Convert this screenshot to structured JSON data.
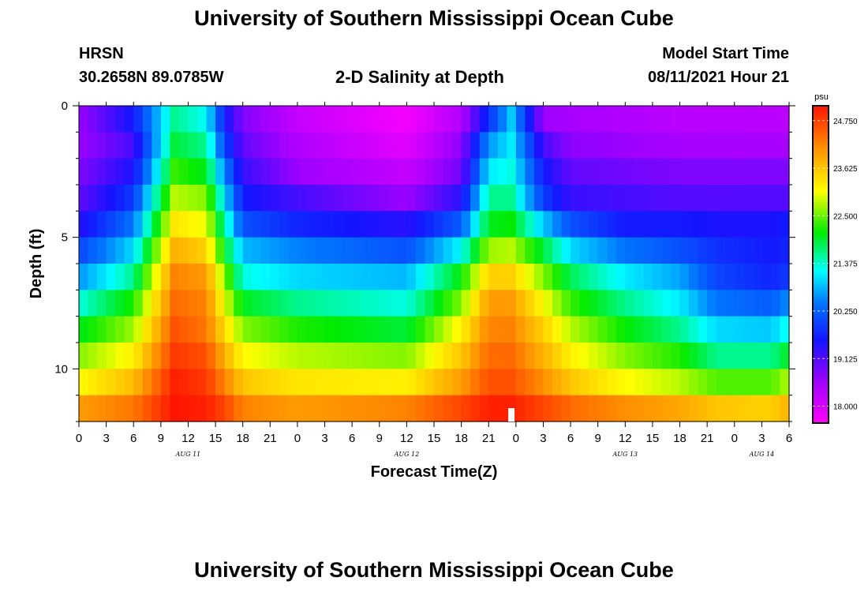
{
  "page": {
    "title_top": "University of Southern Mississippi Ocean Cube",
    "title_bottom": "University of Southern Mississippi Ocean Cube",
    "station": "HRSN",
    "location": "30.2658N  89.0785W",
    "plot_title": "2-D Salinity at Depth",
    "model_start_label": "Model Start Time",
    "model_start_value": "08/11/2021 Hour 21"
  },
  "chart_data": {
    "type": "heatmap",
    "title": "2-D Salinity at Depth",
    "xlabel": "Forecast Time(Z)",
    "ylabel": "Depth (ft)",
    "x_tick_labels": [
      "0",
      "3",
      "6",
      "9",
      "12",
      "15",
      "18",
      "21",
      "0",
      "3",
      "6",
      "9",
      "12",
      "15",
      "18",
      "21",
      "0",
      "3",
      "6",
      "9",
      "12",
      "15",
      "18",
      "21",
      "0",
      "3",
      "6"
    ],
    "x_range_hours": [
      0,
      78
    ],
    "day_labels": [
      {
        "label": "AUG 11",
        "hour": 12
      },
      {
        "label": "AUG 12",
        "hour": 36
      },
      {
        "label": "AUG 13",
        "hour": 60
      },
      {
        "label": "AUG 14",
        "hour": 75
      }
    ],
    "y_tick_labels": [
      "0",
      "5",
      "10"
    ],
    "y_range_ft": [
      0,
      12
    ],
    "colorbar": {
      "unit": "psu",
      "tick_labels": [
        "24.750",
        "23.625",
        "22.500",
        "21.375",
        "20.250",
        "19.125",
        "18.000"
      ],
      "range": [
        17.6,
        25.1
      ]
    },
    "model_start_marker_hour": 47.5,
    "depth_levels_ft": [
      0.5,
      1.5,
      2.5,
      3.5,
      4.5,
      5.5,
      6.5,
      7.5,
      8.5,
      9.5,
      10.5,
      11.5
    ],
    "hours": [
      0,
      6,
      10.5,
      14,
      16,
      18,
      24,
      36,
      42,
      45,
      47.5,
      51,
      54,
      60,
      66,
      70,
      76,
      78
    ],
    "values": [
      [
        18.6,
        19.6,
        21.6,
        21.2,
        19.6,
        18.8,
        18.2,
        17.7,
        18.4,
        19.8,
        20.9,
        18.6,
        18.5,
        18.4,
        18.3,
        18.3,
        18.3,
        18.3
      ],
      [
        18.6,
        19.2,
        21.9,
        21.6,
        20.0,
        19.0,
        18.4,
        17.9,
        18.7,
        20.6,
        21.1,
        19.2,
        18.7,
        18.6,
        18.5,
        18.5,
        18.5,
        18.5
      ],
      [
        18.8,
        19.5,
        22.3,
        22.0,
        20.5,
        19.3,
        18.6,
        18.2,
        18.9,
        21.1,
        21.3,
        19.6,
        19.0,
        18.9,
        18.8,
        18.8,
        18.8,
        18.8
      ],
      [
        19.0,
        19.9,
        22.8,
        22.6,
        21.0,
        19.6,
        19.2,
        18.6,
        19.4,
        21.6,
        21.6,
        19.9,
        19.3,
        19.2,
        19.1,
        19.1,
        19.1,
        19.1
      ],
      [
        19.4,
        20.4,
        23.3,
        23.0,
        21.5,
        20.1,
        19.7,
        19.4,
        20.2,
        22.0,
        22.1,
        20.9,
        20.1,
        19.6,
        19.6,
        19.5,
        19.5,
        19.6
      ],
      [
        20.0,
        21.0,
        23.8,
        23.5,
        22.0,
        20.8,
        20.5,
        20.1,
        21.2,
        22.7,
        22.8,
        21.9,
        21.0,
        20.4,
        20.1,
        19.8,
        19.6,
        19.7
      ],
      [
        20.6,
        21.6,
        24.2,
        24.0,
        22.6,
        21.3,
        21.0,
        20.8,
        22.1,
        23.5,
        23.5,
        22.6,
        21.8,
        21.1,
        20.7,
        20.0,
        19.7,
        19.9
      ],
      [
        21.3,
        22.2,
        24.4,
        24.2,
        23.0,
        22.0,
        21.6,
        21.3,
        22.6,
        24.0,
        24.0,
        23.1,
        22.3,
        21.6,
        21.1,
        20.4,
        20.2,
        20.6
      ],
      [
        22.0,
        22.7,
        24.6,
        24.3,
        23.4,
        22.6,
        22.2,
        21.9,
        23.2,
        24.2,
        24.2,
        23.5,
        22.8,
        22.1,
        21.6,
        21.0,
        20.9,
        21.3
      ],
      [
        22.6,
        23.2,
        24.8,
        24.6,
        23.8,
        23.1,
        22.8,
        22.6,
        23.6,
        24.4,
        24.4,
        23.8,
        23.2,
        22.6,
        22.2,
        21.6,
        21.6,
        22.0
      ],
      [
        23.1,
        23.7,
        25.0,
        24.8,
        24.2,
        23.6,
        23.3,
        23.2,
        24.0,
        24.6,
        24.6,
        24.1,
        23.6,
        23.1,
        22.8,
        22.4,
        22.4,
        22.8
      ],
      [
        24.0,
        24.3,
        25.1,
        25.0,
        24.7,
        24.2,
        24.0,
        24.2,
        24.7,
        25.0,
        25.0,
        24.7,
        24.4,
        24.1,
        23.9,
        23.6,
        23.5,
        23.8
      ]
    ]
  }
}
